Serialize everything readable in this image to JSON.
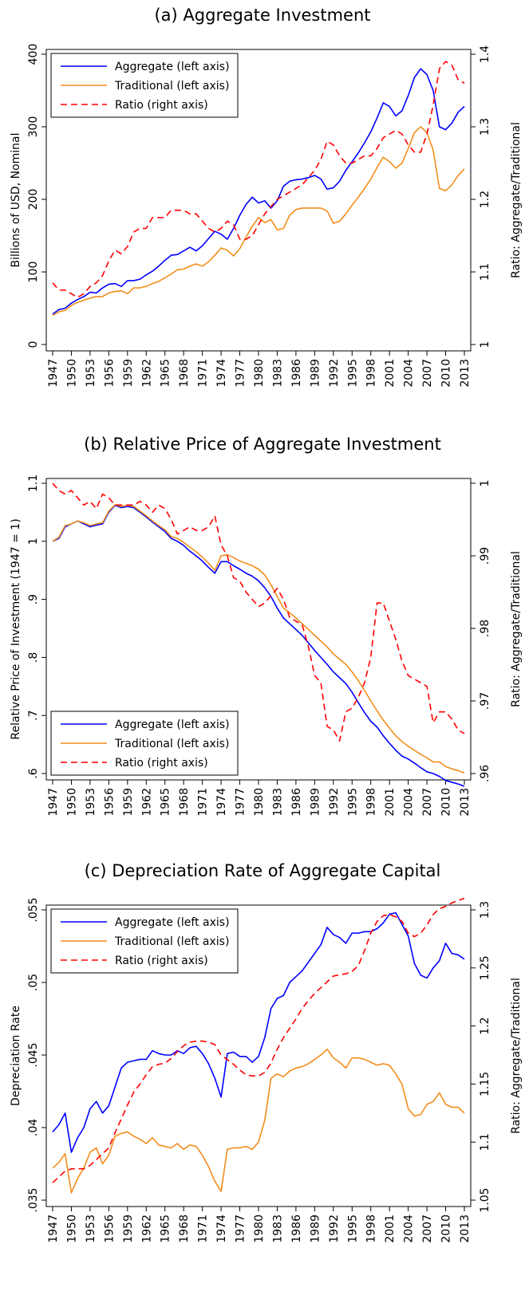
{
  "chart_data": [
    {
      "type": "line",
      "title": "(a) Aggregate Investment",
      "y_label": "Billions of USD, Nominal",
      "y2_label": "Ratio: Aggregate/Traditional",
      "legend_position": "top-left",
      "x": [
        1947,
        1948,
        1949,
        1950,
        1951,
        1952,
        1953,
        1954,
        1955,
        1956,
        1957,
        1958,
        1959,
        1960,
        1961,
        1962,
        1963,
        1964,
        1965,
        1966,
        1967,
        1968,
        1969,
        1970,
        1971,
        1972,
        1973,
        1974,
        1975,
        1976,
        1977,
        1978,
        1979,
        1980,
        1981,
        1982,
        1983,
        1984,
        1985,
        1986,
        1987,
        1988,
        1989,
        1990,
        1991,
        1992,
        1993,
        1994,
        1995,
        1996,
        1997,
        1998,
        1999,
        2000,
        2001,
        2002,
        2003,
        2004,
        2005,
        2006,
        2007,
        2008,
        2009,
        2010,
        2011,
        2012,
        2013
      ],
      "xlim": [
        1947,
        2013
      ],
      "xticks": [
        1947,
        1950,
        1953,
        1956,
        1959,
        1962,
        1965,
        1968,
        1971,
        1974,
        1977,
        1980,
        1983,
        1986,
        1989,
        1992,
        1995,
        1998,
        2001,
        2004,
        2007,
        2010,
        2013
      ],
      "ylim": [
        0,
        400
      ],
      "yticks": [
        0,
        100,
        200,
        300,
        400
      ],
      "y2lim": [
        1,
        1.4
      ],
      "y2ticks": [
        1,
        1.1,
        1.2,
        1.3,
        1.4
      ],
      "series": [
        {
          "name": "Aggregate (left axis)",
          "color": "#0000ff",
          "line_style": "solid",
          "values": [
            42,
            48,
            50,
            57,
            62,
            66,
            72,
            71,
            78,
            83,
            84,
            80,
            88,
            88,
            90,
            96,
            101,
            108,
            116,
            123,
            124,
            129,
            134,
            129,
            136,
            146,
            156,
            152,
            145,
            160,
            178,
            193,
            203,
            195,
            198,
            188,
            198,
            218,
            225,
            227,
            228,
            230,
            233,
            228,
            214,
            216,
            225,
            240,
            252,
            264,
            278,
            293,
            312,
            333,
            328,
            315,
            322,
            343,
            368,
            380,
            372,
            350,
            300,
            296,
            305,
            320,
            328
          ]
        },
        {
          "name": "Traditional (left axis)",
          "color": "#f28e1c",
          "line_style": "solid",
          "values": [
            40,
            45,
            47,
            54,
            58,
            61,
            64,
            66,
            66,
            71,
            73,
            74,
            70,
            78,
            78,
            80,
            84,
            87,
            92,
            97,
            103,
            104,
            108,
            111,
            108,
            114,
            123,
            133,
            130,
            122,
            132,
            148,
            163,
            175,
            168,
            172,
            158,
            160,
            178,
            186,
            188,
            188,
            188,
            188,
            184,
            167,
            170,
            180,
            192,
            203,
            215,
            228,
            244,
            258,
            252,
            243,
            250,
            270,
            292,
            300,
            292,
            268,
            215,
            212,
            220,
            233,
            242
          ]
        },
        {
          "name": "Ratio (right axis)",
          "color": "#ff0000",
          "line_style": "dashed",
          "axis": "y2",
          "values": [
            1.085,
            1.075,
            1.075,
            1.07,
            1.065,
            1.07,
            1.08,
            1.085,
            1.095,
            1.115,
            1.13,
            1.125,
            1.135,
            1.155,
            1.16,
            1.16,
            1.175,
            1.175,
            1.175,
            1.185,
            1.185,
            1.185,
            1.18,
            1.18,
            1.17,
            1.16,
            1.155,
            1.16,
            1.17,
            1.165,
            1.145,
            1.145,
            1.15,
            1.165,
            1.18,
            1.19,
            1.2,
            1.205,
            1.21,
            1.215,
            1.22,
            1.23,
            1.24,
            1.255,
            1.28,
            1.275,
            1.26,
            1.25,
            1.25,
            1.255,
            1.26,
            1.26,
            1.27,
            1.285,
            1.29,
            1.295,
            1.29,
            1.275,
            1.265,
            1.265,
            1.29,
            1.33,
            1.38,
            1.39,
            1.385,
            1.365,
            1.36
          ]
        }
      ]
    },
    {
      "type": "line",
      "title": "(b) Relative Price of Aggregate Investment",
      "y_label": "Relative Price of Investment (1947 = 1)",
      "y2_label": "Ratio: Aggregate/Traditional",
      "legend_position": "bottom-left",
      "x": [
        1947,
        1948,
        1949,
        1950,
        1951,
        1952,
        1953,
        1954,
        1955,
        1956,
        1957,
        1958,
        1959,
        1960,
        1961,
        1962,
        1963,
        1964,
        1965,
        1966,
        1967,
        1968,
        1969,
        1970,
        1971,
        1972,
        1973,
        1974,
        1975,
        1976,
        1977,
        1978,
        1979,
        1980,
        1981,
        1982,
        1983,
        1984,
        1985,
        1986,
        1987,
        1988,
        1989,
        1990,
        1991,
        1992,
        1993,
        1994,
        1995,
        1996,
        1997,
        1998,
        1999,
        2000,
        2001,
        2002,
        2003,
        2004,
        2005,
        2006,
        2007,
        2008,
        2009,
        2010,
        2011,
        2012,
        2013
      ],
      "xlim": [
        1947,
        2013
      ],
      "xticks": [
        1947,
        1950,
        1953,
        1956,
        1959,
        1962,
        1965,
        1968,
        1971,
        1974,
        1977,
        1980,
        1983,
        1986,
        1989,
        1992,
        1995,
        1998,
        2001,
        2004,
        2007,
        2010,
        2013
      ],
      "ylim": [
        0.6,
        1.1
      ],
      "yticks": [
        {
          "value": 0.6,
          "label": ".6"
        },
        {
          "value": 0.7,
          "label": ".7"
        },
        {
          "value": 0.8,
          "label": ".8"
        },
        {
          "value": 0.9,
          "label": ".9"
        },
        1,
        1.1
      ],
      "y2lim": [
        0.96,
        1
      ],
      "y2ticks": [
        {
          "value": 0.96,
          "label": ".96"
        },
        {
          "value": 0.97,
          "label": ".97"
        },
        {
          "value": 0.98,
          "label": ".98"
        },
        {
          "value": 0.99,
          "label": ".99"
        },
        1
      ],
      "series": [
        {
          "name": "Aggregate (left axis)",
          "color": "#0000ff",
          "line_style": "solid",
          "values": [
            1.0,
            1.005,
            1.025,
            1.03,
            1.035,
            1.03,
            1.025,
            1.028,
            1.03,
            1.05,
            1.062,
            1.058,
            1.06,
            1.058,
            1.05,
            1.042,
            1.033,
            1.025,
            1.017,
            1.005,
            1.0,
            0.993,
            0.983,
            0.975,
            0.966,
            0.955,
            0.945,
            0.965,
            0.965,
            0.958,
            0.952,
            0.945,
            0.94,
            0.932,
            0.92,
            0.905,
            0.885,
            0.868,
            0.858,
            0.848,
            0.838,
            0.825,
            0.812,
            0.8,
            0.788,
            0.775,
            0.765,
            0.755,
            0.74,
            0.722,
            0.705,
            0.69,
            0.68,
            0.665,
            0.652,
            0.64,
            0.63,
            0.625,
            0.618,
            0.61,
            0.603,
            0.6,
            0.595,
            0.588,
            0.585,
            0.582,
            0.578
          ]
        },
        {
          "name": "Traditional (left axis)",
          "color": "#f28e1c",
          "line_style": "solid",
          "values": [
            1.0,
            1.007,
            1.027,
            1.03,
            1.035,
            1.032,
            1.027,
            1.03,
            1.032,
            1.052,
            1.063,
            1.06,
            1.062,
            1.06,
            1.052,
            1.044,
            1.035,
            1.027,
            1.02,
            1.008,
            1.005,
            0.998,
            0.99,
            0.982,
            0.973,
            0.962,
            0.95,
            0.975,
            0.977,
            0.972,
            0.966,
            0.962,
            0.958,
            0.952,
            0.942,
            0.925,
            0.905,
            0.885,
            0.877,
            0.868,
            0.858,
            0.848,
            0.838,
            0.828,
            0.818,
            0.806,
            0.797,
            0.788,
            0.775,
            0.76,
            0.743,
            0.725,
            0.708,
            0.692,
            0.678,
            0.665,
            0.655,
            0.647,
            0.64,
            0.633,
            0.627,
            0.62,
            0.62,
            0.612,
            0.608,
            0.605,
            0.601
          ]
        },
        {
          "name": "Ratio (right axis)",
          "color": "#ff0000",
          "line_style": "dashed",
          "axis": "y2",
          "values": [
            1.0,
            0.999,
            0.9985,
            0.999,
            0.998,
            0.997,
            0.9975,
            0.9965,
            0.9985,
            0.998,
            0.997,
            0.997,
            0.997,
            0.997,
            0.9975,
            0.997,
            0.996,
            0.997,
            0.9965,
            0.995,
            0.993,
            0.9935,
            0.994,
            0.9935,
            0.9935,
            0.994,
            0.9955,
            0.9915,
            0.99,
            0.987,
            0.9865,
            0.985,
            0.984,
            0.983,
            0.9835,
            0.9845,
            0.9855,
            0.984,
            0.9815,
            0.981,
            0.9805,
            0.9775,
            0.9735,
            0.9725,
            0.9665,
            0.966,
            0.9645,
            0.9685,
            0.969,
            0.9705,
            0.9725,
            0.976,
            0.9835,
            0.9835,
            0.981,
            0.9785,
            0.9755,
            0.9735,
            0.973,
            0.9725,
            0.972,
            0.967,
            0.9685,
            0.9685,
            0.9675,
            0.966,
            0.9655
          ]
        }
      ]
    },
    {
      "type": "line",
      "title": "(c) Depreciation Rate of Aggregate Capital",
      "y_label": "Depreciation Rate",
      "y2_label": "Ratio: Aggregate/Traditional",
      "legend_position": "top-left",
      "x": [
        1947,
        1948,
        1949,
        1950,
        1951,
        1952,
        1953,
        1954,
        1955,
        1956,
        1957,
        1958,
        1959,
        1960,
        1961,
        1962,
        1963,
        1964,
        1965,
        1966,
        1967,
        1968,
        1969,
        1970,
        1971,
        1972,
        1973,
        1974,
        1975,
        1976,
        1977,
        1978,
        1979,
        1980,
        1981,
        1982,
        1983,
        1984,
        1985,
        1986,
        1987,
        1988,
        1989,
        1990,
        1991,
        1992,
        1993,
        1994,
        1995,
        1996,
        1997,
        1998,
        1999,
        2000,
        2001,
        2002,
        2003,
        2004,
        2005,
        2006,
        2007,
        2008,
        2009,
        2010,
        2011,
        2012,
        2013
      ],
      "xlim": [
        1947,
        2013
      ],
      "xticks": [
        1947,
        1950,
        1953,
        1956,
        1959,
        1962,
        1965,
        1968,
        1971,
        1974,
        1977,
        1980,
        1983,
        1986,
        1989,
        1992,
        1995,
        1998,
        2001,
        2004,
        2007,
        2010,
        2013
      ],
      "ylim": [
        0.035,
        0.055
      ],
      "yticks": [
        {
          "value": 0.035,
          "label": ".035"
        },
        {
          "value": 0.04,
          "label": ".04"
        },
        {
          "value": 0.045,
          "label": ".045"
        },
        {
          "value": 0.05,
          "label": ".05"
        },
        {
          "value": 0.055,
          "label": ".055"
        }
      ],
      "y2lim": [
        1.05,
        1.3
      ],
      "y2ticks": [
        1.05,
        1.1,
        1.15,
        1.2,
        1.25,
        1.3
      ],
      "series": [
        {
          "name": "Aggregate (left axis)",
          "color": "#0000ff",
          "line_style": "solid",
          "values": [
            0.0397,
            0.0402,
            0.041,
            0.0383,
            0.0393,
            0.04,
            0.0413,
            0.0418,
            0.041,
            0.0415,
            0.0428,
            0.0441,
            0.0445,
            0.0446,
            0.0447,
            0.0447,
            0.0453,
            0.0451,
            0.045,
            0.045,
            0.0453,
            0.0451,
            0.0455,
            0.0456,
            0.0451,
            0.0444,
            0.0434,
            0.0421,
            0.0451,
            0.0452,
            0.0449,
            0.0449,
            0.0445,
            0.0449,
            0.0462,
            0.0482,
            0.0489,
            0.0491,
            0.05,
            0.0504,
            0.0508,
            0.0514,
            0.052,
            0.0526,
            0.0538,
            0.0533,
            0.0531,
            0.0527,
            0.0534,
            0.0534,
            0.0535,
            0.0535,
            0.0537,
            0.0541,
            0.0547,
            0.0548,
            0.054,
            0.0532,
            0.0513,
            0.0505,
            0.0503,
            0.051,
            0.0515,
            0.0527,
            0.052,
            0.0519,
            0.0516
          ]
        },
        {
          "name": "Traditional (left axis)",
          "color": "#f28e1c",
          "line_style": "solid",
          "values": [
            0.0372,
            0.0376,
            0.0382,
            0.0355,
            0.0365,
            0.0372,
            0.0383,
            0.0386,
            0.0375,
            0.0381,
            0.0394,
            0.0396,
            0.0397,
            0.0394,
            0.0392,
            0.0389,
            0.0393,
            0.0388,
            0.0387,
            0.0386,
            0.0389,
            0.0385,
            0.0388,
            0.0387,
            0.0381,
            0.0373,
            0.0363,
            0.0356,
            0.0385,
            0.0386,
            0.0386,
            0.0387,
            0.0385,
            0.039,
            0.0405,
            0.0434,
            0.0437,
            0.0435,
            0.0439,
            0.0441,
            0.0442,
            0.0444,
            0.0447,
            0.045,
            0.0454,
            0.0448,
            0.0445,
            0.0441,
            0.0448,
            0.0448,
            0.0447,
            0.0445,
            0.0443,
            0.0444,
            0.0443,
            0.0437,
            0.043,
            0.0413,
            0.0408,
            0.0409,
            0.0416,
            0.0418,
            0.0424,
            0.0416,
            0.0414,
            0.0414,
            0.041
          ]
        },
        {
          "name": "Ratio (right axis)",
          "color": "#ff0000",
          "line_style": "dashed",
          "axis": "y2",
          "values": [
            1.065,
            1.07,
            1.075,
            1.077,
            1.077,
            1.077,
            1.08,
            1.085,
            1.09,
            1.095,
            1.108,
            1.12,
            1.132,
            1.143,
            1.15,
            1.158,
            1.165,
            1.167,
            1.168,
            1.172,
            1.178,
            1.183,
            1.186,
            1.187,
            1.187,
            1.186,
            1.184,
            1.175,
            1.171,
            1.167,
            1.162,
            1.158,
            1.157,
            1.157,
            1.16,
            1.168,
            1.18,
            1.19,
            1.198,
            1.206,
            1.215,
            1.222,
            1.228,
            1.233,
            1.238,
            1.243,
            1.244,
            1.245,
            1.247,
            1.252,
            1.265,
            1.28,
            1.29,
            1.295,
            1.296,
            1.294,
            1.29,
            1.28,
            1.277,
            1.28,
            1.287,
            1.296,
            1.301,
            1.303,
            1.306,
            1.308,
            1.31
          ]
        }
      ]
    }
  ]
}
